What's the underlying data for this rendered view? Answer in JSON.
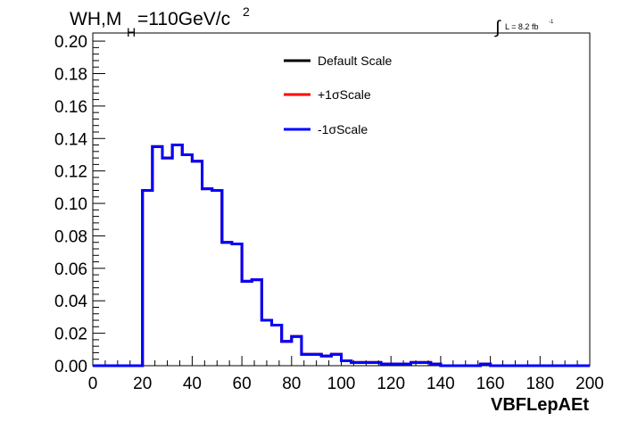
{
  "chart_data": {
    "type": "line",
    "title_main": "WH,M",
    "title_sub": "H",
    "title_rest": "=110GeV/c",
    "title_sup": "2",
    "lumi_label": "L = 8.2 fb",
    "lumi_sup": "-1",
    "xlabel": "VBFLepAEt",
    "ylabel": "",
    "xlim": [
      0,
      200
    ],
    "ylim": [
      0,
      0.205
    ],
    "x_ticks": [
      "0",
      "20",
      "40",
      "60",
      "80",
      "100",
      "120",
      "140",
      "160",
      "180",
      "200"
    ],
    "y_ticks": [
      "0.00",
      "0.02",
      "0.04",
      "0.06",
      "0.08",
      "0.10",
      "0.12",
      "0.14",
      "0.16",
      "0.18",
      "0.20"
    ],
    "bin_edges": [
      0,
      4,
      8,
      12,
      16,
      20,
      24,
      28,
      32,
      36,
      40,
      44,
      48,
      52,
      56,
      60,
      64,
      68,
      72,
      76,
      80,
      84,
      88,
      92,
      96,
      100,
      104,
      108,
      112,
      116,
      120,
      124,
      128,
      132,
      136,
      140,
      144,
      148,
      152,
      156,
      160,
      164,
      168,
      172,
      176,
      180,
      184,
      188,
      192,
      196,
      200
    ],
    "series": [
      {
        "name": "Default Scale",
        "color": "#000000",
        "values": [
          0,
          0,
          0,
          0,
          0,
          0.108,
          0.135,
          0.128,
          0.136,
          0.13,
          0.126,
          0.109,
          0.108,
          0.076,
          0.075,
          0.052,
          0.053,
          0.028,
          0.025,
          0.015,
          0.018,
          0.007,
          0.007,
          0.006,
          0.007,
          0.003,
          0.002,
          0.002,
          0.002,
          0.001,
          0.001,
          0.001,
          0.002,
          0.002,
          0.001,
          0,
          0,
          0,
          0,
          0.001,
          0,
          0,
          0,
          0,
          0,
          0,
          0,
          0,
          0,
          0
        ]
      },
      {
        "name": "+1σScale",
        "color": "#ff0000",
        "values": [
          0,
          0,
          0,
          0,
          0,
          0.108,
          0.135,
          0.128,
          0.136,
          0.13,
          0.126,
          0.109,
          0.108,
          0.076,
          0.075,
          0.052,
          0.053,
          0.028,
          0.025,
          0.015,
          0.018,
          0.007,
          0.007,
          0.006,
          0.007,
          0.003,
          0.002,
          0.002,
          0.002,
          0.001,
          0.001,
          0.001,
          0.002,
          0.002,
          0.001,
          0,
          0,
          0,
          0,
          0.001,
          0,
          0,
          0,
          0,
          0,
          0,
          0,
          0,
          0,
          0
        ]
      },
      {
        "name": "-1σScale",
        "color": "#0000ff",
        "values": [
          0,
          0,
          0,
          0,
          0,
          0.108,
          0.135,
          0.128,
          0.136,
          0.13,
          0.126,
          0.109,
          0.108,
          0.076,
          0.075,
          0.052,
          0.053,
          0.028,
          0.025,
          0.015,
          0.018,
          0.007,
          0.007,
          0.006,
          0.007,
          0.003,
          0.002,
          0.002,
          0.002,
          0.001,
          0.001,
          0.001,
          0.002,
          0.002,
          0.001,
          0,
          0,
          0,
          0,
          0.001,
          0,
          0,
          0,
          0,
          0,
          0,
          0,
          0,
          0,
          0
        ]
      }
    ],
    "grid": false,
    "legend_position": "top-right"
  }
}
